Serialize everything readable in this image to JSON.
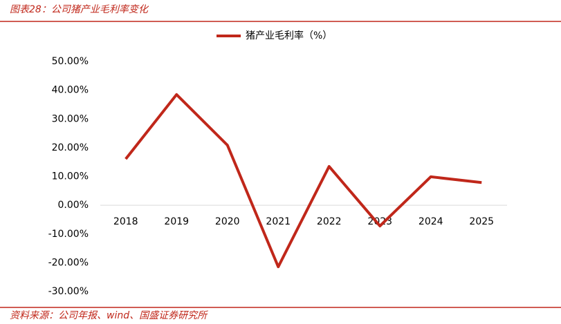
{
  "header": {
    "title": "图表28：公司猪产业毛利率变化"
  },
  "chart_data": {
    "type": "line",
    "categories": [
      "2018",
      "2019",
      "2020",
      "2021",
      "2022",
      "2023",
      "2024",
      "2025"
    ],
    "series": [
      {
        "name": "猪产业毛利率（%）",
        "color": "#c0271a",
        "values": [
          16.1,
          38.5,
          20.9,
          -21.4,
          13.5,
          -7.2,
          9.9,
          7.9
        ]
      }
    ],
    "ylim": [
      -30,
      50
    ],
    "yticks": [
      {
        "value": -30,
        "label": "-30.00%"
      },
      {
        "value": -20,
        "label": "-20.00%"
      },
      {
        "value": -10,
        "label": "-10.00%"
      },
      {
        "value": 0,
        "label": "0.00%"
      },
      {
        "value": 10,
        "label": "10.00%"
      },
      {
        "value": 20,
        "label": "20.00%"
      },
      {
        "value": 30,
        "label": "30.00%"
      },
      {
        "value": 40,
        "label": "40.00%"
      },
      {
        "value": 50,
        "label": "50.00%"
      }
    ],
    "legend": "top"
  },
  "footer": {
    "source": "资料来源：公司年报、wind、国盛证券研究所"
  }
}
